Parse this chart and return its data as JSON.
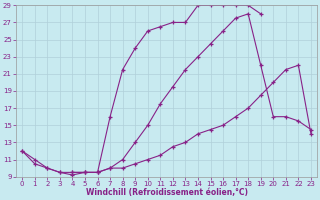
{
  "xlabel": "Windchill (Refroidissement éolien,°C)",
  "xlim": [
    -0.5,
    23.5
  ],
  "ylim": [
    9,
    29
  ],
  "xticks": [
    0,
    1,
    2,
    3,
    4,
    5,
    6,
    7,
    8,
    9,
    10,
    11,
    12,
    13,
    14,
    15,
    16,
    17,
    18,
    19,
    20,
    21,
    22,
    23
  ],
  "yticks": [
    9,
    11,
    13,
    15,
    17,
    19,
    21,
    23,
    25,
    27,
    29
  ],
  "bg_color": "#c8eaf0",
  "grid_color": "#b0d0da",
  "line_color": "#882288",
  "curves": [
    {
      "x": [
        0,
        1,
        2,
        3,
        4,
        5,
        6,
        7,
        8,
        9,
        10,
        11,
        12,
        13,
        14,
        15,
        16,
        17,
        18,
        19
      ],
      "y": [
        12,
        11,
        10,
        9.5,
        9.2,
        9.5,
        9.5,
        16,
        21.5,
        24,
        26,
        26.5,
        27,
        27,
        29,
        29,
        29,
        29,
        29,
        28
      ]
    },
    {
      "x": [
        4,
        5,
        6,
        7,
        8,
        9,
        10,
        11,
        12,
        13,
        14,
        15,
        16,
        17,
        18,
        19,
        20,
        21,
        22,
        23
      ],
      "y": [
        9.5,
        9.5,
        9.5,
        10,
        11,
        13,
        15,
        17.5,
        19.5,
        21.5,
        23,
        24.5,
        26,
        27.5,
        28,
        22,
        16,
        16,
        15.5,
        14.5
      ]
    },
    {
      "x": [
        0,
        1,
        2,
        3,
        4,
        5,
        6,
        7,
        8,
        9,
        10,
        11,
        12,
        13,
        14,
        15,
        16,
        17,
        18,
        19,
        20,
        21,
        22,
        23
      ],
      "y": [
        12,
        10.5,
        10,
        9.5,
        9.5,
        9.5,
        9.5,
        10,
        10,
        10.5,
        11,
        11.5,
        12.5,
        13,
        14,
        14.5,
        15,
        16,
        17,
        18.5,
        20,
        21.5,
        22,
        14
      ]
    }
  ]
}
